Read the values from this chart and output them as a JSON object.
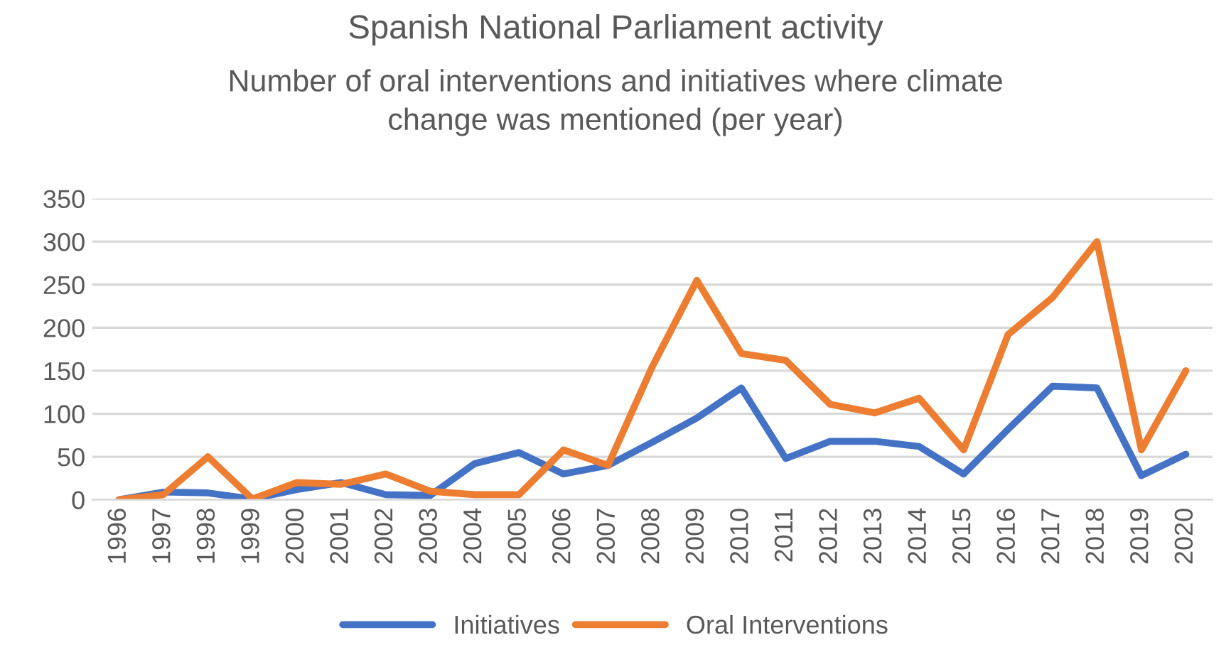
{
  "chart_data": {
    "type": "line",
    "title": "Spanish National Parliament activity",
    "subtitle": "Number of oral interventions and initiatives where climate\nchange was mentioned (per year)",
    "categories": [
      "1996",
      "1997",
      "1998",
      "1999",
      "2000",
      "2001",
      "2002",
      "2003",
      "2004",
      "2005",
      "2006",
      "2007",
      "2008",
      "2009",
      "2010",
      "2011",
      "2012",
      "2013",
      "2014",
      "2015",
      "2016",
      "2017",
      "2018",
      "2019",
      "2020"
    ],
    "series": [
      {
        "name": "Initiatives",
        "color": "#4472c4",
        "values": [
          0,
          9,
          8,
          1,
          12,
          20,
          6,
          5,
          42,
          55,
          30,
          40,
          67,
          95,
          130,
          48,
          68,
          68,
          62,
          30,
          82,
          132,
          130,
          28,
          53
        ]
      },
      {
        "name": "Oral Interventions",
        "color": "#ed7d31",
        "values": [
          0,
          6,
          50,
          1,
          20,
          18,
          30,
          10,
          6,
          6,
          58,
          40,
          155,
          255,
          170,
          162,
          111,
          101,
          118,
          58,
          192,
          235,
          300,
          58,
          150
        ]
      }
    ],
    "ylim": [
      0,
      350
    ],
    "yticks": [
      0,
      50,
      100,
      150,
      200,
      250,
      300,
      350
    ],
    "grid": "y",
    "legend": "bottom",
    "marker": "none",
    "line_style": "solid"
  }
}
